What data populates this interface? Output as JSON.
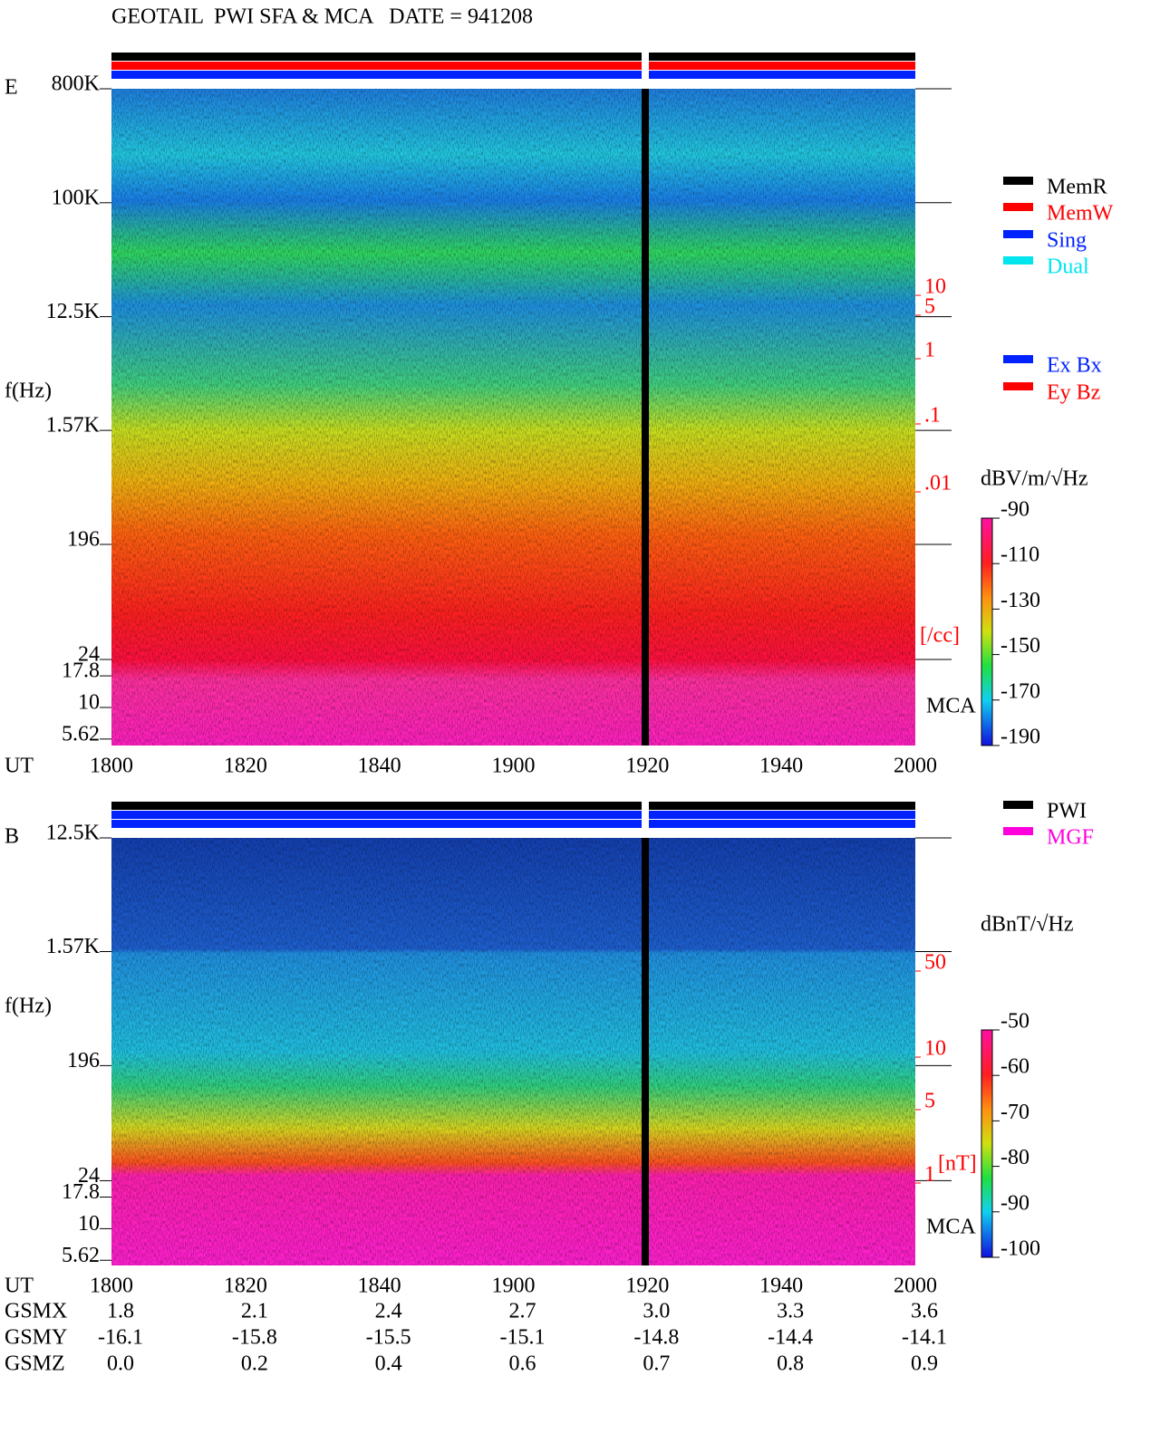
{
  "header": {
    "title": "GEOTAIL  PWI SFA & MCA   DATE = 941208"
  },
  "chart_data": [
    {
      "type": "spectrogram",
      "panel_label": "E",
      "ylabel": "f(Hz)",
      "xlabel": "UT",
      "categories": [
        "1800",
        "1820",
        "1840",
        "1900",
        "1920",
        "1940",
        "2000"
      ],
      "log_scale": true,
      "ylim": [
        5.62,
        800000
      ],
      "yticks": [
        {
          "value": 800000,
          "label": "800K"
        },
        {
          "value": 100000,
          "label": "100K"
        },
        {
          "value": 12500,
          "label": "12.5K"
        },
        {
          "value": 1570,
          "label": "1.57K"
        },
        196,
        24,
        17.8,
        10,
        5.62
      ],
      "mca_label": "MCA",
      "density_ticks": [
        "10",
        "5",
        "1",
        ".1",
        ".01"
      ],
      "density_unit": "[/cc]",
      "colorbar": {
        "label": "dBV/m/√Hz",
        "ticks": [
          -90,
          -110,
          -130,
          -150,
          -170,
          -190
        ]
      },
      "legend_groups": [
        [
          {
            "name": "MemR",
            "color": "#000000"
          },
          {
            "name": "MemW",
            "color": "#ff0000"
          },
          {
            "name": "Sing",
            "color": "#0022ff"
          },
          {
            "name": "Dual",
            "color": "#00e5ee"
          }
        ],
        [
          {
            "name": "Ex Bx",
            "color": "#0022ff"
          },
          {
            "name": "Ey Bz",
            "color": "#ff0000"
          }
        ]
      ]
    },
    {
      "type": "spectrogram",
      "panel_label": "B",
      "ylabel": "f(Hz)",
      "xlabel": "UT",
      "categories": [
        "1800",
        "1820",
        "1840",
        "1900",
        "1920",
        "1940",
        "2000"
      ],
      "log_scale": true,
      "ylim": [
        5.62,
        12500
      ],
      "yticks": [
        {
          "value": 12500,
          "label": "12.5K"
        },
        {
          "value": 1570,
          "label": "1.57K"
        },
        196,
        24,
        17.8,
        10,
        5.62
      ],
      "mca_label": "MCA",
      "density_ticks": [
        "50",
        "10",
        "5",
        "1"
      ],
      "density_unit": "[nT]",
      "colorbar": {
        "label": "dBnT/√Hz",
        "ticks": [
          -50,
          -60,
          -70,
          -80,
          -90,
          -100
        ]
      },
      "legend_groups": [
        [
          {
            "name": "PWI",
            "color": "#000000"
          },
          {
            "name": "MGF",
            "color": "#ff00dd"
          }
        ]
      ]
    }
  ],
  "orbit": {
    "rows": [
      {
        "label": "GSMX",
        "values": [
          "1.8",
          "2.1",
          "2.4",
          "2.7",
          "3.0",
          "3.3",
          "3.6"
        ]
      },
      {
        "label": "GSMY",
        "values": [
          "-16.1",
          "-15.8",
          "-15.5",
          "-15.1",
          "-14.8",
          "-14.4",
          "-14.1"
        ]
      },
      {
        "label": "GSMZ",
        "values": [
          "0.0",
          "0.2",
          "0.4",
          "0.6",
          "0.7",
          "0.8",
          "0.9"
        ]
      }
    ]
  }
}
